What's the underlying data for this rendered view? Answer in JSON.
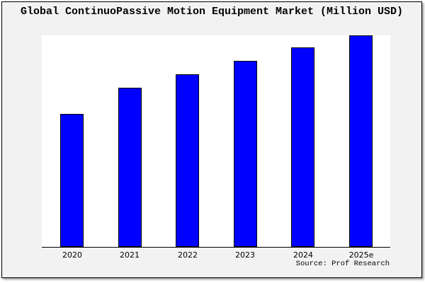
{
  "chart_data": {
    "type": "bar",
    "title": "Global ContinuoPassive Motion Equipment Market (Million USD)",
    "categories": [
      "2020",
      "2021",
      "2022",
      "2023",
      "2024",
      "2025e"
    ],
    "values": [
      62.9,
      75.3,
      81.6,
      88.0,
      94.3,
      100.0
    ],
    "values_note": "y-axis has no ticks or labels; values are relative bar heights normalized to 2025e = 100",
    "xlabel": "",
    "ylabel": "",
    "ylim": [
      0,
      100.3
    ],
    "grid": false,
    "legend": null,
    "source": "Source: Prof Research"
  },
  "colors": {
    "bar_fill": "#0000ff",
    "bar_edge": "#000000",
    "background": "#f2f2f2",
    "plot_background": "#ffffff",
    "frame_border": "#000000"
  }
}
